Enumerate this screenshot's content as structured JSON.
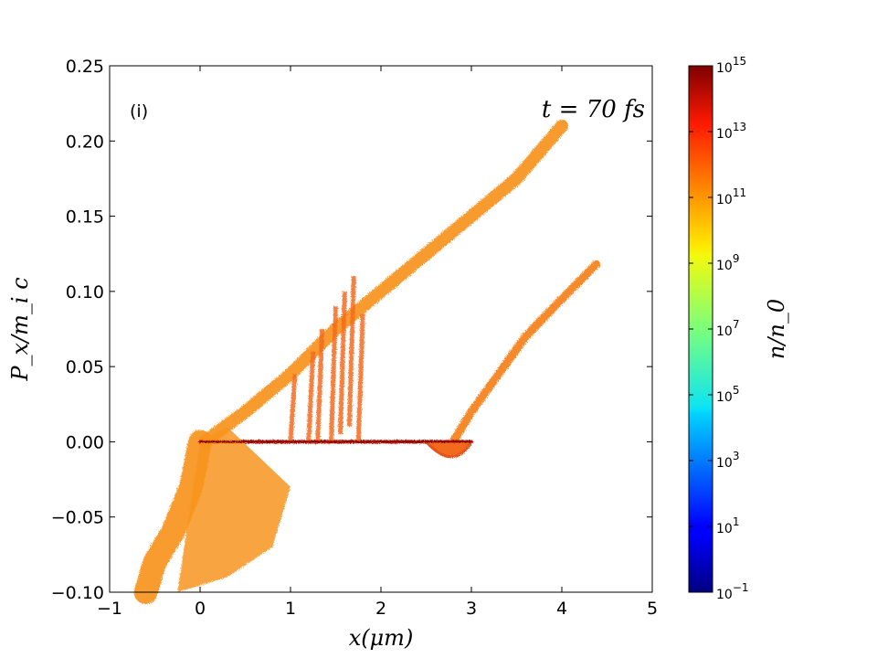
{
  "chart_data": {
    "type": "scatter",
    "panel_label": "(i)",
    "time_annotation": "t = 70 fs",
    "xlabel": "x(μm)",
    "ylabel": "P_x/m_i c",
    "xlim": [
      -1,
      5
    ],
    "ylim": [
      -0.1,
      0.25
    ],
    "x_ticks": [
      "−1",
      "0",
      "1",
      "2",
      "3",
      "4",
      "5"
    ],
    "y_ticks": [
      "−0.10",
      "−0.05",
      "0.00",
      "0.05",
      "0.10",
      "0.15",
      "0.20",
      "0.25"
    ],
    "grid": false,
    "colorbar": {
      "label": "n/n_0",
      "scale": "log",
      "range": [
        -1,
        15
      ],
      "colormap": "jet",
      "ticks": [
        "10^-1",
        "10^1",
        "10^3",
        "10^5",
        "10^7",
        "10^9",
        "10^11",
        "10^13",
        "10^15"
      ]
    },
    "phase_space_regions": [
      {
        "name": "upper-branch",
        "points": [
          [
            0.05,
            0.0
          ],
          [
            0.5,
            0.02
          ],
          [
            1.0,
            0.045
          ],
          [
            1.5,
            0.075
          ],
          [
            2.0,
            0.1
          ],
          [
            2.5,
            0.125
          ],
          [
            3.0,
            0.15
          ],
          [
            3.5,
            0.175
          ],
          [
            4.0,
            0.21
          ]
        ]
      },
      {
        "name": "lower-branch",
        "points": [
          [
            2.8,
            0.0
          ],
          [
            3.0,
            0.02
          ],
          [
            3.3,
            0.045
          ],
          [
            3.6,
            0.07
          ],
          [
            4.0,
            0.095
          ],
          [
            4.38,
            0.118
          ]
        ]
      },
      {
        "name": "negative-tail",
        "points": [
          [
            0.0,
            0.0
          ],
          [
            -0.1,
            -0.03
          ],
          [
            -0.3,
            -0.06
          ],
          [
            -0.5,
            -0.08
          ],
          [
            -0.6,
            -0.1
          ]
        ]
      },
      {
        "name": "flat-line",
        "points": [
          [
            0.0,
            0.0
          ],
          [
            3.0,
            0.0
          ]
        ]
      }
    ]
  }
}
